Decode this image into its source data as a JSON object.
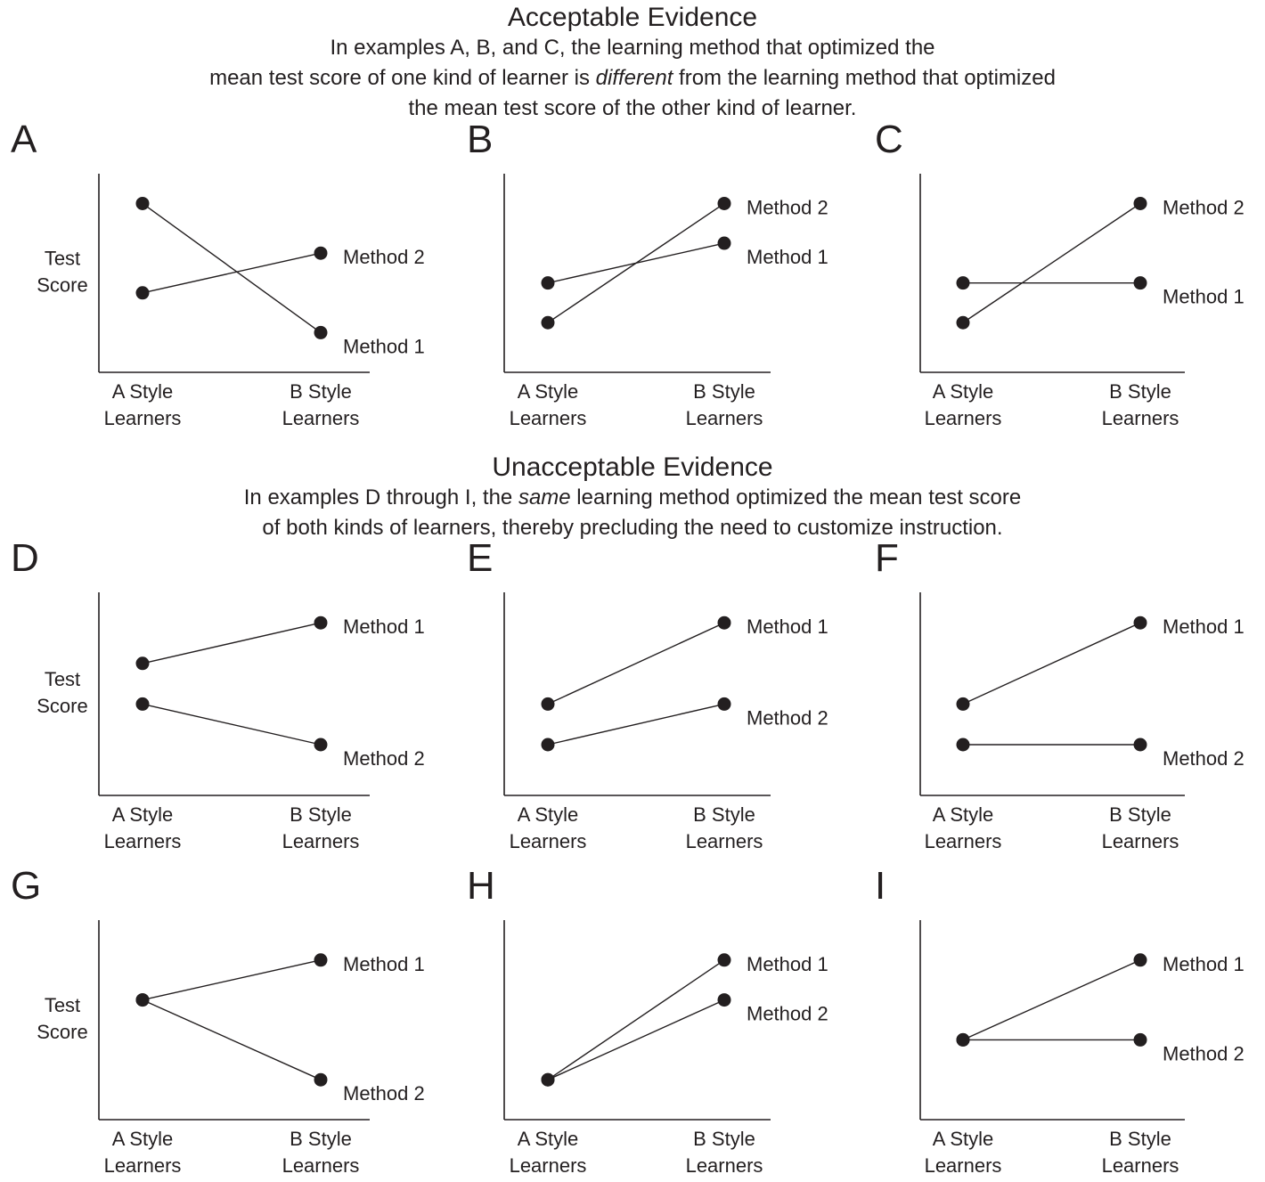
{
  "acceptable": {
    "title": "Acceptable Evidence",
    "line1": "In examples A, B, and C, the learning method that optimized the",
    "line2_pre": "mean test score of one kind of learner is ",
    "line2_em": "different",
    "line2_post": "  from the learning method that optimized",
    "line3": "the mean test score of the other kind of learner."
  },
  "unacceptable": {
    "title": "Unacceptable Evidence",
    "line1_pre": "In examples D through I, the ",
    "line1_em": "same",
    "line1_post": " learning method optimized the mean test score",
    "line2": "of both kinds of learners, thereby precluding the need to customize instruction."
  },
  "colors": {
    "ink": "#231f20",
    "background": "#ffffff"
  },
  "chart_data": [
    {
      "panel": "A",
      "type": "line",
      "ylabel": [
        "Test",
        "Score"
      ],
      "categories": [
        "A Style Learners",
        "B Style Learners"
      ],
      "series": [
        {
          "name": "Method 1",
          "values": [
            8.5,
            2.0
          ]
        },
        {
          "name": "Method 2",
          "values": [
            4.0,
            6.0
          ]
        }
      ]
    },
    {
      "panel": "B",
      "type": "line",
      "ylabel": [],
      "categories": [
        "A Style Learners",
        "B Style Learners"
      ],
      "series": [
        {
          "name": "Method 1",
          "values": [
            4.5,
            6.5
          ]
        },
        {
          "name": "Method 2",
          "values": [
            2.5,
            8.5
          ]
        }
      ]
    },
    {
      "panel": "C",
      "type": "line",
      "ylabel": [],
      "categories": [
        "A Style Learners",
        "B Style Learners"
      ],
      "series": [
        {
          "name": "Method 1",
          "values": [
            4.5,
            4.5
          ]
        },
        {
          "name": "Method 2",
          "values": [
            2.5,
            8.5
          ]
        }
      ]
    },
    {
      "panel": "D",
      "type": "line",
      "ylabel": [
        "Test",
        "Score"
      ],
      "categories": [
        "A Style Learners",
        "B Style Learners"
      ],
      "series": [
        {
          "name": "Method 1",
          "values": [
            6.5,
            8.5
          ]
        },
        {
          "name": "Method 2",
          "values": [
            4.5,
            2.5
          ]
        }
      ]
    },
    {
      "panel": "E",
      "type": "line",
      "ylabel": [],
      "categories": [
        "A Style Learners",
        "B Style Learners"
      ],
      "series": [
        {
          "name": "Method 1",
          "values": [
            4.5,
            8.5
          ]
        },
        {
          "name": "Method 2",
          "values": [
            2.5,
            4.5
          ]
        }
      ]
    },
    {
      "panel": "F",
      "type": "line",
      "ylabel": [],
      "categories": [
        "A Style Learners",
        "B Style Learners"
      ],
      "series": [
        {
          "name": "Method 1",
          "values": [
            4.5,
            8.5
          ]
        },
        {
          "name": "Method 2",
          "values": [
            2.5,
            2.5
          ]
        }
      ]
    },
    {
      "panel": "G",
      "type": "line",
      "ylabel": [
        "Test",
        "Score"
      ],
      "categories": [
        "A Style Learners",
        "B Style Learners"
      ],
      "series": [
        {
          "name": "Method 1",
          "values": [
            6.0,
            8.0
          ]
        },
        {
          "name": "Method 2",
          "values": [
            6.0,
            2.0
          ]
        }
      ]
    },
    {
      "panel": "H",
      "type": "line",
      "ylabel": [],
      "categories": [
        "A Style Learners",
        "B Style Learners"
      ],
      "series": [
        {
          "name": "Method 1",
          "values": [
            2.0,
            8.0
          ]
        },
        {
          "name": "Method 2",
          "values": [
            2.0,
            6.0
          ]
        }
      ]
    },
    {
      "panel": "I",
      "type": "line",
      "ylabel": [],
      "categories": [
        "A Style Learners",
        "B Style Learners"
      ],
      "series": [
        {
          "name": "Method 1",
          "values": [
            4.0,
            8.0
          ]
        },
        {
          "name": "Method 2",
          "values": [
            4.0,
            4.0
          ]
        }
      ]
    }
  ]
}
